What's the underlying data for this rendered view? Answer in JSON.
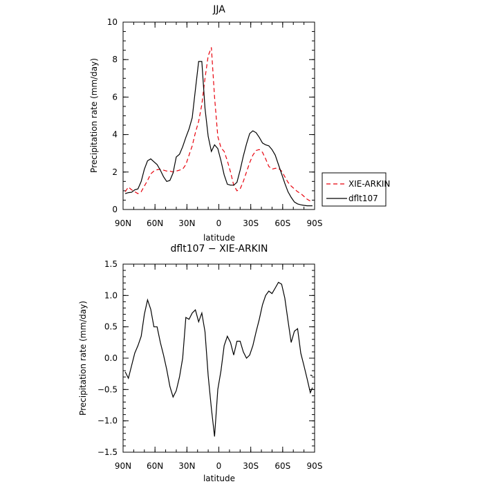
{
  "chart_data": [
    {
      "type": "line",
      "title": "JJA",
      "xlabel": "latitude",
      "ylabel": "Precipitation rate (mm/day)",
      "xlim": [
        90,
        -90
      ],
      "ylim": [
        0,
        10
      ],
      "xticks": [
        90,
        60,
        30,
        0,
        -30,
        -60,
        -90
      ],
      "xtick_labels": [
        "90N",
        "60N",
        "30N",
        "0",
        "30S",
        "60S",
        "90S"
      ],
      "yticks": [
        0,
        2,
        4,
        6,
        8,
        10
      ],
      "ytick_labels": [
        "0",
        "2",
        "4",
        "6",
        "8",
        "10"
      ],
      "legend_position": "right",
      "series": [
        {
          "name": "XIE-ARKIN",
          "color": "#e8000b",
          "dash": "dashed",
          "x": [
            88,
            85,
            82,
            79,
            76,
            73,
            70,
            67,
            64,
            61,
            58,
            55,
            52,
            49,
            46,
            43,
            40,
            37,
            34,
            31,
            28,
            25,
            22,
            19,
            16,
            13,
            10,
            7,
            4,
            1,
            -2,
            -5,
            -8,
            -11,
            -14,
            -17,
            -20,
            -23,
            -26,
            -29,
            -32,
            -35,
            -38,
            -41,
            -44,
            -47,
            -50,
            -53,
            -56,
            -59,
            -62,
            -65,
            -68,
            -71,
            -74,
            -77,
            -80,
            -83,
            -86,
            -88
          ],
          "y": [
            0.95,
            1.2,
            1.05,
            0.95,
            0.85,
            0.95,
            1.25,
            1.55,
            1.9,
            2.05,
            2.12,
            2.15,
            2.1,
            2.05,
            2.05,
            2.0,
            2.05,
            2.1,
            2.15,
            2.4,
            2.9,
            3.4,
            4.1,
            4.7,
            5.6,
            7.0,
            8.2,
            8.65,
            6.0,
            3.9,
            3.3,
            3.1,
            2.6,
            2.0,
            1.3,
            1.0,
            1.1,
            1.5,
            2.0,
            2.5,
            2.9,
            3.15,
            3.2,
            3.05,
            2.7,
            2.3,
            2.15,
            2.2,
            2.2,
            2.05,
            1.75,
            1.45,
            1.25,
            1.1,
            0.95,
            0.85,
            0.7,
            0.55,
            0.45,
            0.45
          ]
        },
        {
          "name": "dflt107",
          "color": "#000000",
          "dash": "solid",
          "x": [
            88,
            85,
            82,
            79,
            76,
            73,
            70,
            67,
            64,
            61,
            58,
            55,
            52,
            49,
            46,
            43,
            40,
            37,
            34,
            31,
            28,
            25,
            22,
            19,
            16,
            13,
            10,
            7,
            4,
            1,
            -2,
            -5,
            -8,
            -11,
            -14,
            -17,
            -20,
            -23,
            -26,
            -29,
            -32,
            -35,
            -38,
            -41,
            -44,
            -47,
            -50,
            -53,
            -56,
            -59,
            -62,
            -65,
            -68,
            -71,
            -74,
            -77,
            -80,
            -83,
            -86,
            -88
          ],
          "y": [
            0.85,
            0.9,
            0.92,
            1.05,
            1.1,
            1.5,
            2.15,
            2.6,
            2.7,
            2.55,
            2.4,
            2.1,
            1.75,
            1.5,
            1.55,
            1.95,
            2.8,
            2.95,
            3.35,
            3.85,
            4.3,
            4.9,
            6.4,
            7.9,
            7.9,
            5.4,
            3.9,
            3.1,
            3.45,
            3.25,
            2.6,
            1.85,
            1.35,
            1.3,
            1.3,
            1.45,
            2.1,
            2.85,
            3.5,
            4.05,
            4.2,
            4.1,
            3.85,
            3.55,
            3.45,
            3.4,
            3.2,
            2.9,
            2.4,
            1.9,
            1.4,
            0.95,
            0.65,
            0.4,
            0.3,
            0.25,
            0.22,
            0.2,
            0.2,
            0.2
          ]
        }
      ]
    },
    {
      "type": "line",
      "title": "dflt107 − XIE-ARKIN",
      "xlabel": "latitude",
      "ylabel": "Precipitation rate (mm/day)",
      "xlim": [
        90,
        -90
      ],
      "ylim": [
        -1.5,
        1.5
      ],
      "xticks": [
        90,
        60,
        30,
        0,
        -30,
        -60,
        -90
      ],
      "xtick_labels": [
        "90N",
        "60N",
        "30N",
        "0",
        "30S",
        "60S",
        "90S"
      ],
      "yticks": [
        -1.5,
        -1.0,
        -0.5,
        0.0,
        0.5,
        1.0,
        1.5
      ],
      "ytick_labels": [
        "−1.5",
        "−1.0",
        "−0.5",
        "0.0",
        "0.5",
        "1.0",
        "1.5"
      ],
      "series": [
        {
          "color": "#000000",
          "dash": "solid",
          "x": [
            88,
            85,
            82,
            79,
            76,
            73,
            70,
            67,
            64,
            61,
            58,
            55,
            52,
            49,
            46,
            43,
            40,
            37,
            34,
            31,
            28,
            25,
            22,
            19,
            16,
            13,
            10,
            7,
            4,
            1,
            -2,
            -5,
            -8,
            -11,
            -14,
            -17,
            -20,
            -23,
            -26,
            -29,
            -32,
            -35,
            -38,
            -41,
            -44,
            -47,
            -50,
            -53,
            -56,
            -59,
            -62,
            -65,
            -68,
            -71,
            -74,
            -77,
            -80,
            -83,
            -86,
            -88
          ],
          "y": [
            -0.22,
            -0.32,
            -0.12,
            0.08,
            0.2,
            0.35,
            0.7,
            0.93,
            0.78,
            0.5,
            0.5,
            0.25,
            0.05,
            -0.18,
            -0.45,
            -0.62,
            -0.52,
            -0.3,
            0.0,
            0.65,
            0.62,
            0.72,
            0.77,
            0.58,
            0.72,
            0.42,
            -0.28,
            -0.8,
            -1.25,
            -0.5,
            -0.2,
            0.2,
            0.35,
            0.25,
            0.05,
            0.27,
            0.27,
            0.1,
            0.0,
            0.05,
            0.2,
            0.42,
            0.62,
            0.85,
            1.0,
            1.07,
            1.03,
            1.12,
            1.21,
            1.18,
            0.96,
            0.6,
            0.25,
            0.43,
            0.47,
            0.08,
            -0.12,
            -0.33,
            -0.55,
            -0.47
          ]
        },
        {
          "color": "#000000",
          "dash": "solid",
          "x": [
            -86,
            -88
          ],
          "y": [
            -0.27,
            -0.28
          ]
        }
      ]
    }
  ]
}
